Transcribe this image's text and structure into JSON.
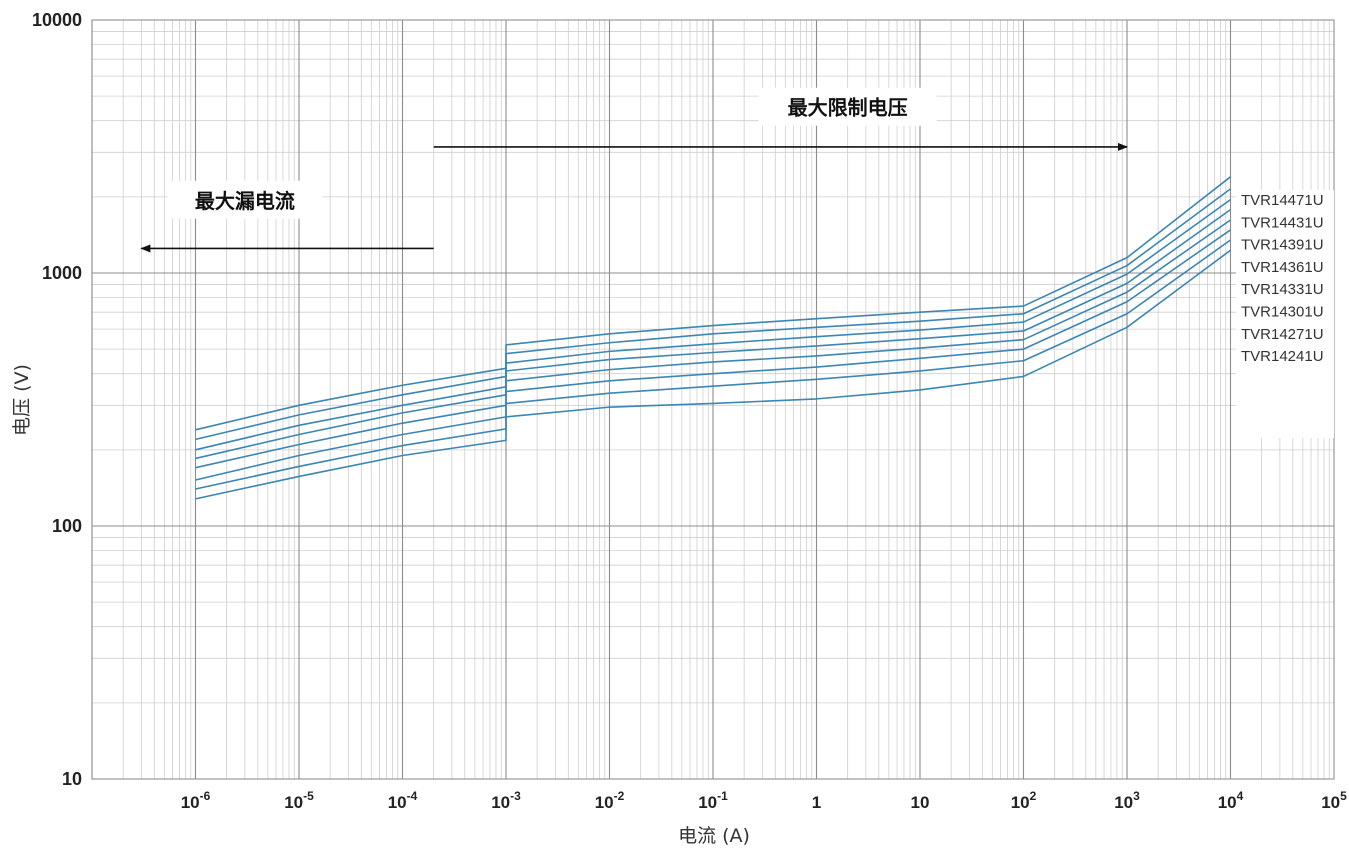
{
  "chart_data": {
    "type": "line",
    "title": "",
    "xlabel": "电流 (A)",
    "ylabel": "电压  (V)",
    "x_scale": "log",
    "y_scale": "log",
    "xlim": [
      1e-07,
      100000.0
    ],
    "ylim": [
      10,
      10000
    ],
    "grid": true,
    "y_ticks": [
      {
        "value": 10,
        "label": "10"
      },
      {
        "value": 100,
        "label": "100"
      },
      {
        "value": 1000,
        "label": "1000"
      },
      {
        "value": 10000,
        "label": "10000"
      }
    ],
    "x_ticks": [
      {
        "value": 1e-06,
        "base": "10",
        "exp": "-6",
        "label": ""
      },
      {
        "value": 1e-05,
        "base": "10",
        "exp": "-5",
        "label": ""
      },
      {
        "value": 0.0001,
        "base": "10",
        "exp": "-4",
        "label": ""
      },
      {
        "value": 0.001,
        "base": "10",
        "exp": "-3",
        "label": ""
      },
      {
        "value": 0.01,
        "base": "10",
        "exp": "-2",
        "label": ""
      },
      {
        "value": 0.1,
        "base": "10",
        "exp": "-1",
        "label": ""
      },
      {
        "value": 1,
        "base": "",
        "exp": "",
        "label": "1"
      },
      {
        "value": 10,
        "base": "",
        "exp": "",
        "label": "10"
      },
      {
        "value": 100,
        "base": "10",
        "exp": "2",
        "label": ""
      },
      {
        "value": 1000,
        "base": "10",
        "exp": "3",
        "label": ""
      },
      {
        "value": 10000,
        "base": "10",
        "exp": "4",
        "label": ""
      },
      {
        "value": 100000,
        "base": "10",
        "exp": "5",
        "label": ""
      }
    ],
    "annotations": [
      {
        "text": "最大限制电压",
        "from": 0.0002,
        "to": 1000.0,
        "y": 3150,
        "text_x": 2,
        "text_y": 4500
      },
      {
        "text": "最大漏电流",
        "from": 0.0002,
        "to": 3e-07,
        "y": 1250,
        "text_x": 3e-06,
        "text_y": 1930
      }
    ],
    "series": [
      {
        "name": "TVR14471U",
        "points": [
          [
            1e-06,
            240
          ],
          [
            1e-05,
            300
          ],
          [
            0.0001,
            360
          ],
          [
            0.001,
            420
          ],
          [
            0.001,
            520
          ],
          [
            0.01,
            575
          ],
          [
            0.1,
            620
          ],
          [
            1,
            660
          ],
          [
            10,
            700
          ],
          [
            100,
            740
          ],
          [
            1000,
            1150
          ],
          [
            10000,
            2400
          ]
        ]
      },
      {
        "name": "TVR14431U",
        "points": [
          [
            1e-06,
            220
          ],
          [
            1e-05,
            275
          ],
          [
            0.0001,
            330
          ],
          [
            0.001,
            390
          ],
          [
            0.001,
            480
          ],
          [
            0.01,
            530
          ],
          [
            0.1,
            575
          ],
          [
            1,
            610
          ],
          [
            10,
            645
          ],
          [
            100,
            690
          ],
          [
            1000,
            1070
          ],
          [
            10000,
            2150
          ]
        ]
      },
      {
        "name": "TVR14391U",
        "points": [
          [
            1e-06,
            200
          ],
          [
            1e-05,
            250
          ],
          [
            0.0001,
            300
          ],
          [
            0.001,
            355
          ],
          [
            0.001,
            440
          ],
          [
            0.01,
            490
          ],
          [
            0.1,
            525
          ],
          [
            1,
            560
          ],
          [
            10,
            595
          ],
          [
            100,
            640
          ],
          [
            1000,
            990
          ],
          [
            10000,
            1950
          ]
        ]
      },
      {
        "name": "TVR14361U",
        "points": [
          [
            1e-06,
            185
          ],
          [
            1e-05,
            230
          ],
          [
            0.0001,
            280
          ],
          [
            0.001,
            330
          ],
          [
            0.001,
            410
          ],
          [
            0.01,
            455
          ],
          [
            0.1,
            485
          ],
          [
            1,
            515
          ],
          [
            10,
            550
          ],
          [
            100,
            590
          ],
          [
            1000,
            910
          ],
          [
            10000,
            1780
          ]
        ]
      },
      {
        "name": "TVR14331U",
        "points": [
          [
            1e-06,
            170
          ],
          [
            1e-05,
            210
          ],
          [
            0.0001,
            255
          ],
          [
            0.001,
            300
          ],
          [
            0.001,
            375
          ],
          [
            0.01,
            415
          ],
          [
            0.1,
            445
          ],
          [
            1,
            470
          ],
          [
            10,
            505
          ],
          [
            100,
            545
          ],
          [
            1000,
            840
          ],
          [
            10000,
            1620
          ]
        ]
      },
      {
        "name": "TVR14301U",
        "points": [
          [
            1e-06,
            152
          ],
          [
            1e-05,
            190
          ],
          [
            0.0001,
            230
          ],
          [
            0.001,
            270
          ],
          [
            0.001,
            340
          ],
          [
            0.01,
            375
          ],
          [
            0.1,
            400
          ],
          [
            1,
            425
          ],
          [
            10,
            460
          ],
          [
            100,
            500
          ],
          [
            1000,
            770
          ],
          [
            10000,
            1480
          ]
        ]
      },
      {
        "name": "TVR14271U",
        "points": [
          [
            1e-06,
            140
          ],
          [
            1e-05,
            172
          ],
          [
            0.0001,
            208
          ],
          [
            0.001,
            242
          ],
          [
            0.001,
            305
          ],
          [
            0.01,
            335
          ],
          [
            0.1,
            357
          ],
          [
            1,
            380
          ],
          [
            10,
            410
          ],
          [
            100,
            450
          ],
          [
            1000,
            690
          ],
          [
            10000,
            1350
          ]
        ]
      },
      {
        "name": "TVR14241U",
        "points": [
          [
            1e-06,
            128
          ],
          [
            1e-05,
            157
          ],
          [
            0.0001,
            190
          ],
          [
            0.001,
            218
          ],
          [
            0.001,
            270
          ],
          [
            0.01,
            295
          ],
          [
            0.1,
            305
          ],
          [
            1,
            318
          ],
          [
            10,
            345
          ],
          [
            100,
            390
          ],
          [
            1000,
            610
          ],
          [
            10000,
            1230
          ]
        ]
      }
    ],
    "colors": {
      "series": "#3a86b4",
      "grid_major": "#8c8c8c",
      "grid_minor": "#cfcfcf",
      "axis": "#999999",
      "arrow": "#111111"
    }
  }
}
